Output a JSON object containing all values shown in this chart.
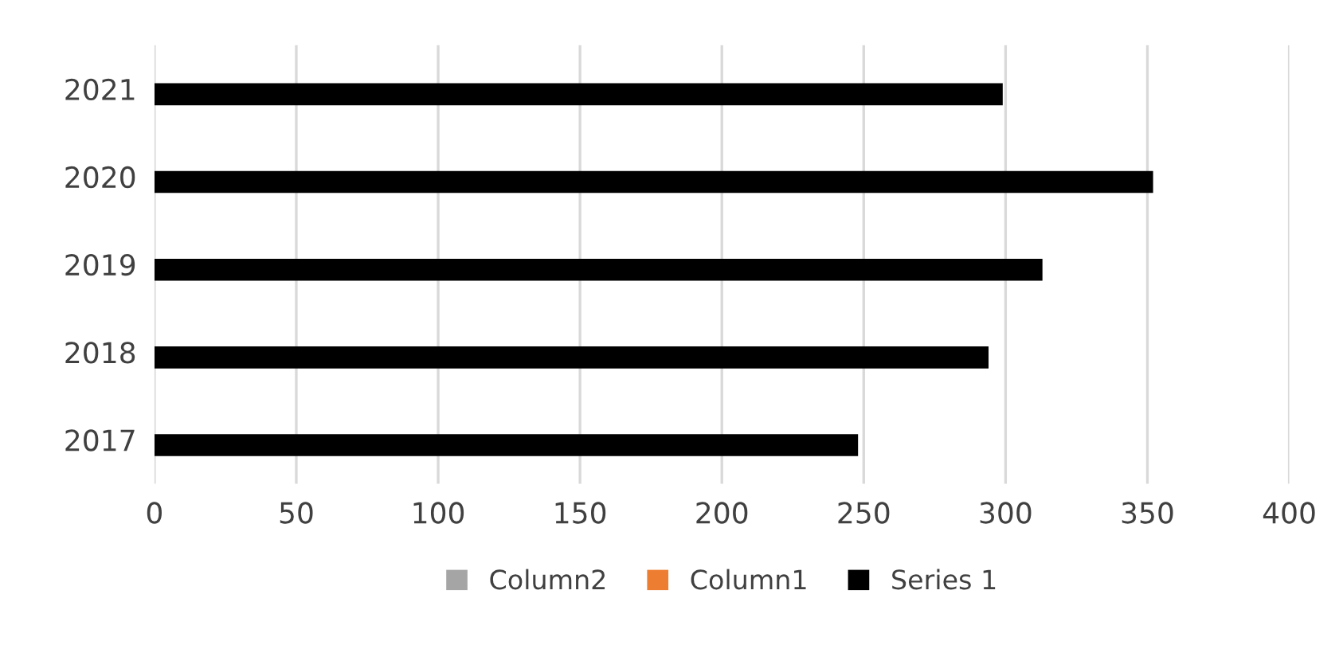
{
  "chart_data": {
    "type": "bar",
    "orientation": "horizontal",
    "categories": [
      "2021",
      "2020",
      "2019",
      "2018",
      "2017"
    ],
    "series": [
      {
        "name": "Column2",
        "color": "#a5a5a5",
        "values": [
          null,
          null,
          null,
          null,
          null
        ]
      },
      {
        "name": "Column1",
        "color": "#ed7d31",
        "values": [
          null,
          null,
          null,
          null,
          null
        ]
      },
      {
        "name": "Series 1",
        "color": "#000000",
        "values": [
          299,
          352,
          313,
          294,
          248
        ]
      }
    ],
    "xlim": [
      0,
      400
    ],
    "xticks": [
      0,
      50,
      100,
      150,
      200,
      250,
      300,
      350,
      400
    ],
    "grid": "x",
    "legend": "bottom"
  }
}
